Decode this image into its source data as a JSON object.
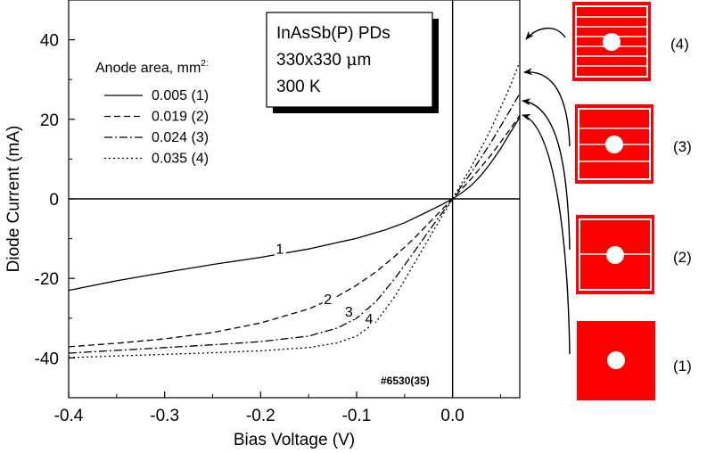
{
  "chart_data": {
    "type": "line",
    "xlabel": "Bias Voltage (V)",
    "ylabel": "Diode Current (mA)",
    "xlim": [
      -0.4,
      0.07
    ],
    "ylim": [
      -50,
      50
    ],
    "xticks": [
      -0.4,
      -0.3,
      -0.2,
      -0.1,
      0.0
    ],
    "xtick_labels": [
      "-0.4",
      "-0.3",
      "-0.2",
      "-0.1",
      "0.0"
    ],
    "yticks": [
      -40,
      -20,
      0,
      20,
      40
    ],
    "ytick_labels": [
      "-40",
      "-20",
      "0",
      "20",
      "40"
    ],
    "grid": false,
    "legend": {
      "title": "Anode area, mm",
      "title_superscript": "2:",
      "placement": "upper-left",
      "entries": [
        "0.005 (1)",
        "0.019 (2)",
        "0.024 (3)",
        "0.035 (4)"
      ]
    },
    "info_box": [
      "InAsSb(P) PDs",
      "330x330 μm",
      "300 K"
    ],
    "sample_id": "#6530(35)",
    "series": [
      {
        "name": "0.005 (1)",
        "style": "solid",
        "curve_label": "1",
        "label_at": [
          -0.18,
          -13.8
        ],
        "points": [
          [
            -0.4,
            -23
          ],
          [
            -0.35,
            -20.6
          ],
          [
            -0.3,
            -18.5
          ],
          [
            -0.25,
            -16.5
          ],
          [
            -0.2,
            -14.7
          ],
          [
            -0.15,
            -12.6
          ],
          [
            -0.1,
            -9.9
          ],
          [
            -0.07,
            -7.8
          ],
          [
            -0.05,
            -6.0
          ],
          [
            -0.03,
            -3.7
          ],
          [
            -0.01,
            -1.3
          ],
          [
            0.0,
            0.0
          ],
          [
            0.01,
            1.6
          ],
          [
            0.02,
            3.5
          ],
          [
            0.03,
            6.0
          ],
          [
            0.04,
            9.1
          ],
          [
            0.05,
            12.6
          ],
          [
            0.06,
            16.6
          ],
          [
            0.07,
            20.5
          ]
        ]
      },
      {
        "name": "0.019 (2)",
        "style": "dashed",
        "curve_label": "2",
        "label_at": [
          -0.13,
          -26.5
        ],
        "points": [
          [
            -0.4,
            -37.2
          ],
          [
            -0.35,
            -36.3
          ],
          [
            -0.3,
            -35.2
          ],
          [
            -0.25,
            -33.6
          ],
          [
            -0.2,
            -31.2
          ],
          [
            -0.15,
            -27.7
          ],
          [
            -0.12,
            -24.5
          ],
          [
            -0.1,
            -21.7
          ],
          [
            -0.08,
            -18.4
          ],
          [
            -0.06,
            -14.4
          ],
          [
            -0.04,
            -9.9
          ],
          [
            -0.02,
            -4.9
          ],
          [
            0.0,
            0.0
          ],
          [
            0.02,
            5.2
          ],
          [
            0.04,
            11.0
          ],
          [
            0.06,
            17.5
          ],
          [
            0.07,
            21.0
          ]
        ]
      },
      {
        "name": "0.024 (3)",
        "style": "dash-dot",
        "curve_label": "3",
        "label_at": [
          -0.108,
          -29.6
        ],
        "points": [
          [
            -0.4,
            -38.8
          ],
          [
            -0.35,
            -38.1
          ],
          [
            -0.3,
            -37.4
          ],
          [
            -0.25,
            -36.7
          ],
          [
            -0.2,
            -35.9
          ],
          [
            -0.15,
            -34.5
          ],
          [
            -0.12,
            -32.5
          ],
          [
            -0.1,
            -30.0
          ],
          [
            -0.08,
            -25.9
          ],
          [
            -0.06,
            -20.0
          ],
          [
            -0.04,
            -13.3
          ],
          [
            -0.02,
            -6.5
          ],
          [
            0.0,
            0.0
          ],
          [
            0.02,
            6.8
          ],
          [
            0.04,
            14.2
          ],
          [
            0.06,
            22.3
          ],
          [
            0.07,
            26.5
          ]
        ]
      },
      {
        "name": "0.035 (4)",
        "style": "dotted",
        "curve_label": "4",
        "label_at": [
          -0.087,
          -31.4
        ],
        "points": [
          [
            -0.4,
            -39.9
          ],
          [
            -0.35,
            -39.5
          ],
          [
            -0.3,
            -39.1
          ],
          [
            -0.25,
            -38.7
          ],
          [
            -0.2,
            -38.2
          ],
          [
            -0.15,
            -37.4
          ],
          [
            -0.12,
            -36.2
          ],
          [
            -0.1,
            -34.5
          ],
          [
            -0.08,
            -31.0
          ],
          [
            -0.06,
            -24.5
          ],
          [
            -0.04,
            -16.3
          ],
          [
            -0.02,
            -8.0
          ],
          [
            0.0,
            0.0
          ],
          [
            0.02,
            8.3
          ],
          [
            0.04,
            17.5
          ],
          [
            0.06,
            28.3
          ],
          [
            0.07,
            34.5
          ]
        ]
      }
    ]
  },
  "diagrams": {
    "labels": [
      "(4)",
      "(3)",
      "(2)",
      "(1)"
    ],
    "fill_color": "#ff0000",
    "line_color": "#ffffff"
  }
}
